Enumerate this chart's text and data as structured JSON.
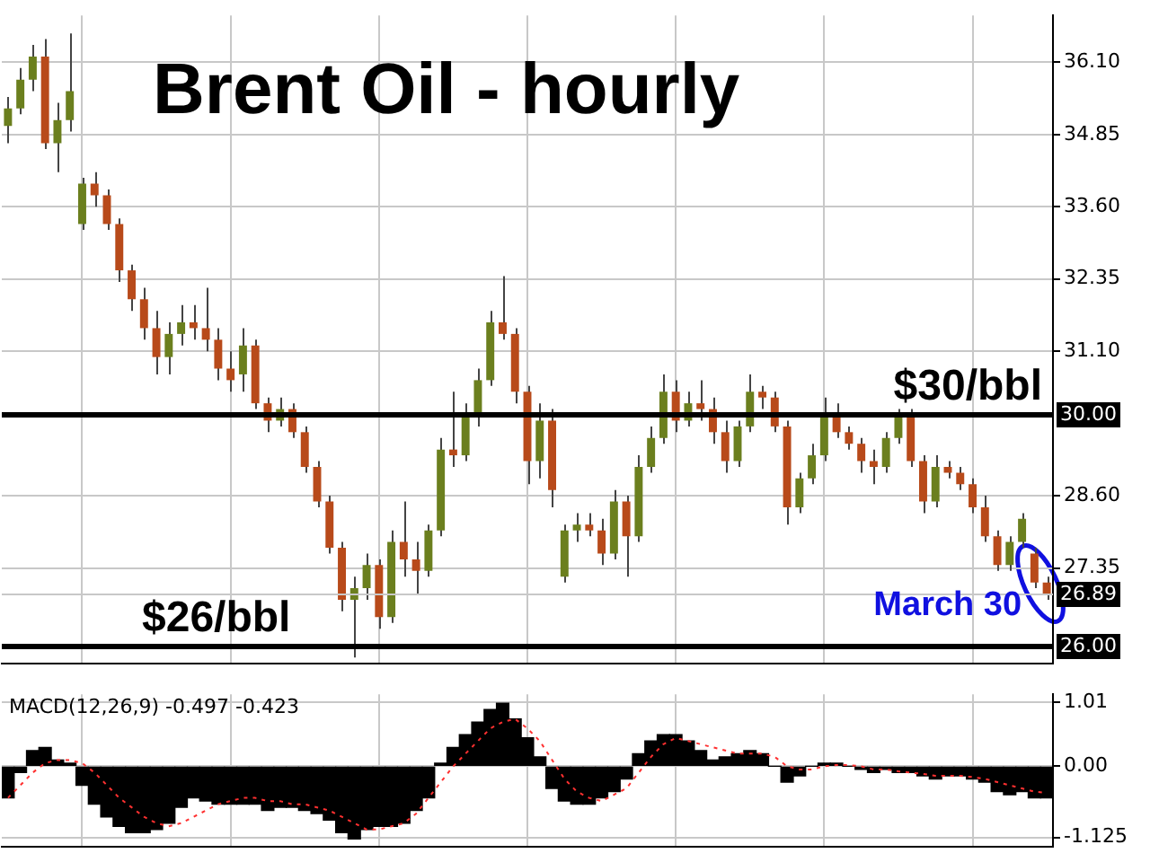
{
  "chart_data": [
    {
      "type": "candlestick",
      "title": "Brent Oil - hourly",
      "categories": [
        null,
        null,
        null,
        null,
        null,
        null,
        null,
        null,
        null,
        null,
        null,
        null,
        null,
        null,
        null,
        null,
        null,
        null,
        null,
        null,
        null,
        null,
        null,
        null,
        null,
        null,
        null,
        null,
        null,
        null,
        null,
        null,
        null,
        null,
        null,
        null,
        null,
        null,
        null,
        null,
        null,
        null,
        null,
        null,
        null,
        null,
        null,
        null,
        null,
        null,
        null,
        null,
        null,
        null,
        null,
        null,
        null,
        null,
        null,
        null,
        null,
        null,
        null,
        null,
        null,
        null,
        null,
        null,
        null,
        null,
        null,
        null,
        null,
        null,
        null,
        null,
        null,
        null,
        null,
        null,
        null,
        null,
        null,
        null,
        null
      ],
      "ohlc": [
        [
          35.0,
          35.5,
          34.7,
          35.3
        ],
        [
          35.3,
          36.0,
          35.2,
          35.8
        ],
        [
          35.8,
          36.4,
          35.6,
          36.2
        ],
        [
          36.2,
          36.5,
          34.6,
          34.7
        ],
        [
          34.7,
          35.4,
          34.2,
          35.1
        ],
        [
          35.1,
          36.6,
          34.9,
          35.6
        ],
        [
          33.3,
          34.1,
          33.2,
          34.0
        ],
        [
          34.0,
          34.2,
          33.6,
          33.8
        ],
        [
          33.8,
          33.9,
          33.2,
          33.3
        ],
        [
          33.3,
          33.4,
          32.3,
          32.5
        ],
        [
          32.5,
          32.6,
          31.8,
          32.0
        ],
        [
          32.0,
          32.2,
          31.3,
          31.5
        ],
        [
          31.5,
          31.8,
          30.7,
          31.0
        ],
        [
          31.0,
          31.6,
          30.7,
          31.4
        ],
        [
          31.4,
          31.9,
          31.2,
          31.6
        ],
        [
          31.6,
          31.9,
          31.3,
          31.5
        ],
        [
          31.5,
          32.2,
          31.1,
          31.3
        ],
        [
          31.3,
          31.5,
          30.6,
          30.8
        ],
        [
          30.8,
          31.1,
          30.4,
          30.6
        ],
        [
          30.7,
          31.5,
          30.4,
          31.2
        ],
        [
          31.2,
          31.3,
          30.1,
          30.2
        ],
        [
          30.2,
          30.3,
          29.7,
          29.9
        ],
        [
          29.9,
          30.3,
          29.8,
          30.1
        ],
        [
          30.1,
          30.2,
          29.6,
          29.7
        ],
        [
          29.7,
          29.8,
          29.0,
          29.1
        ],
        [
          29.1,
          29.2,
          28.4,
          28.5
        ],
        [
          28.5,
          28.6,
          27.6,
          27.7
        ],
        [
          27.7,
          27.8,
          26.6,
          26.8
        ],
        [
          26.8,
          27.2,
          25.8,
          27.0
        ],
        [
          27.0,
          27.6,
          26.8,
          27.4
        ],
        [
          27.4,
          27.5,
          26.3,
          26.5
        ],
        [
          26.5,
          28.0,
          26.4,
          27.8
        ],
        [
          27.8,
          28.5,
          27.2,
          27.5
        ],
        [
          27.5,
          27.8,
          26.9,
          27.3
        ],
        [
          27.3,
          28.1,
          27.2,
          28.0
        ],
        [
          28.0,
          29.6,
          27.9,
          29.4
        ],
        [
          29.4,
          30.4,
          29.1,
          29.3
        ],
        [
          29.3,
          30.2,
          29.2,
          30.0
        ],
        [
          30.0,
          30.8,
          29.8,
          30.6
        ],
        [
          30.6,
          31.8,
          30.5,
          31.6
        ],
        [
          31.6,
          32.4,
          31.3,
          31.4
        ],
        [
          31.4,
          31.5,
          30.2,
          30.4
        ],
        [
          30.4,
          30.5,
          28.8,
          29.2
        ],
        [
          29.2,
          30.2,
          28.9,
          29.9
        ],
        [
          29.9,
          30.1,
          28.4,
          28.7
        ],
        [
          27.2,
          28.1,
          27.1,
          28.0
        ],
        [
          28.0,
          28.3,
          27.8,
          28.1
        ],
        [
          28.1,
          28.3,
          27.9,
          28.0
        ],
        [
          28.0,
          28.2,
          27.4,
          27.6
        ],
        [
          27.6,
          28.7,
          27.5,
          28.5
        ],
        [
          28.5,
          28.6,
          27.2,
          27.9
        ],
        [
          27.9,
          29.3,
          27.8,
          29.1
        ],
        [
          29.1,
          29.8,
          29.0,
          29.6
        ],
        [
          29.6,
          30.7,
          29.5,
          30.4
        ],
        [
          30.4,
          30.6,
          29.7,
          29.9
        ],
        [
          29.9,
          30.4,
          29.8,
          30.2
        ],
        [
          30.2,
          30.6,
          29.9,
          30.1
        ],
        [
          30.1,
          30.3,
          29.5,
          29.7
        ],
        [
          29.7,
          29.9,
          29.0,
          29.2
        ],
        [
          29.2,
          29.9,
          29.1,
          29.8
        ],
        [
          29.8,
          30.7,
          29.7,
          30.4
        ],
        [
          30.4,
          30.5,
          30.1,
          30.3
        ],
        [
          30.3,
          30.4,
          29.7,
          29.8
        ],
        [
          29.8,
          29.9,
          28.1,
          28.4
        ],
        [
          28.4,
          29.0,
          28.3,
          28.9
        ],
        [
          28.9,
          29.5,
          28.8,
          29.3
        ],
        [
          29.3,
          30.3,
          29.2,
          30.0
        ],
        [
          30.0,
          30.2,
          29.6,
          29.7
        ],
        [
          29.7,
          29.8,
          29.4,
          29.5
        ],
        [
          29.5,
          29.6,
          29.0,
          29.2
        ],
        [
          29.2,
          29.4,
          28.8,
          29.1
        ],
        [
          29.1,
          29.7,
          29.0,
          29.6
        ],
        [
          29.6,
          30.1,
          29.5,
          30.0
        ],
        [
          30.0,
          30.1,
          29.1,
          29.2
        ],
        [
          29.2,
          29.3,
          28.3,
          28.5
        ],
        [
          28.5,
          29.3,
          28.4,
          29.1
        ],
        [
          29.1,
          29.2,
          28.9,
          29.0
        ],
        [
          29.0,
          29.1,
          28.7,
          28.8
        ],
        [
          28.8,
          28.9,
          28.3,
          28.4
        ],
        [
          28.4,
          28.6,
          27.8,
          27.9
        ],
        [
          27.9,
          28.0,
          27.3,
          27.4
        ],
        [
          27.4,
          27.9,
          27.3,
          27.8
        ],
        [
          27.8,
          28.3,
          27.7,
          28.2
        ],
        [
          27.6,
          27.7,
          27.0,
          27.1
        ],
        [
          27.1,
          27.2,
          26.8,
          26.9
        ]
      ],
      "ylim": [
        25.7,
        36.91
      ],
      "yticks": [
        {
          "value": 36.1,
          "label": "36.10"
        },
        {
          "value": 34.85,
          "label": "34.85"
        },
        {
          "value": 33.6,
          "label": "33.60"
        },
        {
          "value": 32.35,
          "label": "32.35"
        },
        {
          "value": 31.1,
          "label": "31.10"
        },
        {
          "value": 28.6,
          "label": "28.60"
        },
        {
          "value": 27.35,
          "label": "27.35"
        }
      ],
      "grid": true,
      "ref_lines": [
        {
          "axis": "y",
          "value": 30,
          "label": "30.00",
          "color": "#000000"
        },
        {
          "axis": "y",
          "value": 26,
          "label": "26.00",
          "color": "#000000"
        },
        {
          "axis": "y",
          "value": 26.89,
          "label": "26.89",
          "color": "#c8c8c8"
        }
      ],
      "annotations": [
        {
          "text": "$30/bbl",
          "y": 30
        },
        {
          "text": "$26/bbl",
          "y": 26
        },
        "March 30"
      ]
    },
    {
      "type": "bar",
      "title": "MACD(12,26,9) -0.497 -0.423",
      "categories": [
        null,
        null,
        null,
        null,
        null,
        null,
        null,
        null,
        null,
        null,
        null,
        null,
        null,
        null,
        null,
        null,
        null,
        null,
        null,
        null,
        null,
        null,
        null,
        null,
        null,
        null,
        null,
        null,
        null,
        null,
        null,
        null,
        null,
        null,
        null,
        null,
        null,
        null,
        null,
        null,
        null,
        null,
        null,
        null,
        null,
        null,
        null,
        null,
        null,
        null,
        null,
        null,
        null,
        null,
        null,
        null,
        null,
        null,
        null,
        null,
        null,
        null,
        null,
        null,
        null,
        null,
        null,
        null,
        null,
        null,
        null,
        null,
        null,
        null,
        null,
        null,
        null,
        null,
        null,
        null,
        null,
        null,
        null,
        null,
        null
      ],
      "series": [
        {
          "color": "#000000",
          "values": [
            -0.5,
            -0.1,
            0.25,
            0.3,
            0.1,
            0.05,
            -0.3,
            -0.6,
            -0.8,
            -0.95,
            -1.05,
            -1.05,
            -1.0,
            -0.9,
            -0.65,
            -0.5,
            -0.55,
            -0.6,
            -0.6,
            -0.6,
            -0.6,
            -0.7,
            -0.65,
            -0.65,
            -0.7,
            -0.75,
            -0.85,
            -1.05,
            -1.15,
            -1.0,
            -0.95,
            -0.95,
            -0.9,
            -0.7,
            -0.5,
            0.05,
            0.3,
            0.5,
            0.7,
            0.9,
            1.0,
            0.75,
            0.45,
            0.15,
            -0.35,
            -0.55,
            -0.6,
            -0.6,
            -0.5,
            -0.4,
            -0.2,
            0.2,
            0.4,
            0.5,
            0.5,
            0.4,
            0.25,
            0.1,
            0.15,
            0.2,
            0.25,
            0.2,
            0.0,
            -0.25,
            -0.15,
            0.0,
            0.05,
            0.05,
            0.0,
            -0.05,
            -0.1,
            -0.05,
            -0.1,
            -0.1,
            -0.15,
            -0.2,
            -0.15,
            -0.15,
            -0.2,
            -0.25,
            -0.4,
            -0.45,
            -0.4,
            -0.5,
            -0.5
          ]
        },
        {
          "type": "line",
          "color": "#ff3030",
          "line_style": "dotted",
          "values": [
            -0.5,
            -0.3,
            -0.1,
            0.05,
            0.1,
            0.1,
            0.05,
            -0.1,
            -0.3,
            -0.5,
            -0.65,
            -0.8,
            -0.9,
            -0.95,
            -0.9,
            -0.8,
            -0.7,
            -0.6,
            -0.55,
            -0.5,
            -0.5,
            -0.55,
            -0.55,
            -0.6,
            -0.6,
            -0.65,
            -0.7,
            -0.8,
            -0.9,
            -1.0,
            -1.0,
            -0.95,
            -0.9,
            -0.75,
            -0.5,
            -0.25,
            0.0,
            0.2,
            0.4,
            0.6,
            0.7,
            0.75,
            0.6,
            0.4,
            0.1,
            -0.2,
            -0.4,
            -0.5,
            -0.55,
            -0.45,
            -0.35,
            -0.1,
            0.15,
            0.35,
            0.45,
            0.4,
            0.35,
            0.3,
            0.25,
            0.2,
            0.2,
            0.2,
            0.15,
            0.0,
            -0.05,
            -0.05,
            0.0,
            0.02,
            0.02,
            0.0,
            -0.05,
            -0.05,
            -0.08,
            -0.1,
            -0.12,
            -0.15,
            -0.15,
            -0.15,
            -0.17,
            -0.2,
            -0.25,
            -0.3,
            -0.35,
            -0.4,
            -0.42
          ]
        }
      ],
      "ylim": [
        -1.27,
        1.14
      ],
      "yticks": [
        {
          "value": 1.01,
          "label": "1.01"
        },
        {
          "value": 0,
          "label": "0.00"
        },
        {
          "value": -1.125,
          "label": "-1.125"
        }
      ],
      "grid": true
    }
  ]
}
